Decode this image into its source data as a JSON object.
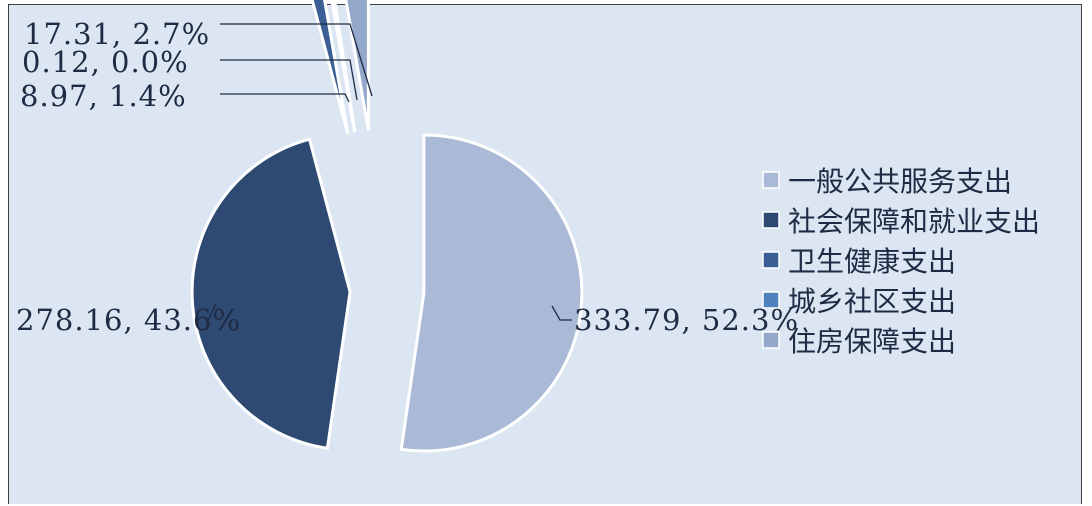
{
  "chart_data": {
    "type": "pie",
    "exploded": true,
    "legend_position": "right",
    "slices": [
      {
        "name": "一般公共服务支出",
        "value": 333.79,
        "percent": "52.3%",
        "label": "333.79, 52.3%",
        "color": "#a9b9d6"
      },
      {
        "name": "社会保障和就业支出",
        "value": 278.16,
        "percent": "43.6%",
        "label": "278.16, 43.6%",
        "color": "#2e4a72"
      },
      {
        "name": "卫生健康支出",
        "value": 8.97,
        "percent": "1.4%",
        "label": "8.97, 1.4%",
        "color": "#3b5e94"
      },
      {
        "name": "城乡社区支出",
        "value": 0.12,
        "percent": "0.0%",
        "label": "0.12, 0.0%",
        "color": "#4f81bd"
      },
      {
        "name": "住房保障支出",
        "value": 17.31,
        "percent": "2.7%",
        "label": "17.31, 2.7%",
        "color": "#94a8cc"
      }
    ]
  }
}
